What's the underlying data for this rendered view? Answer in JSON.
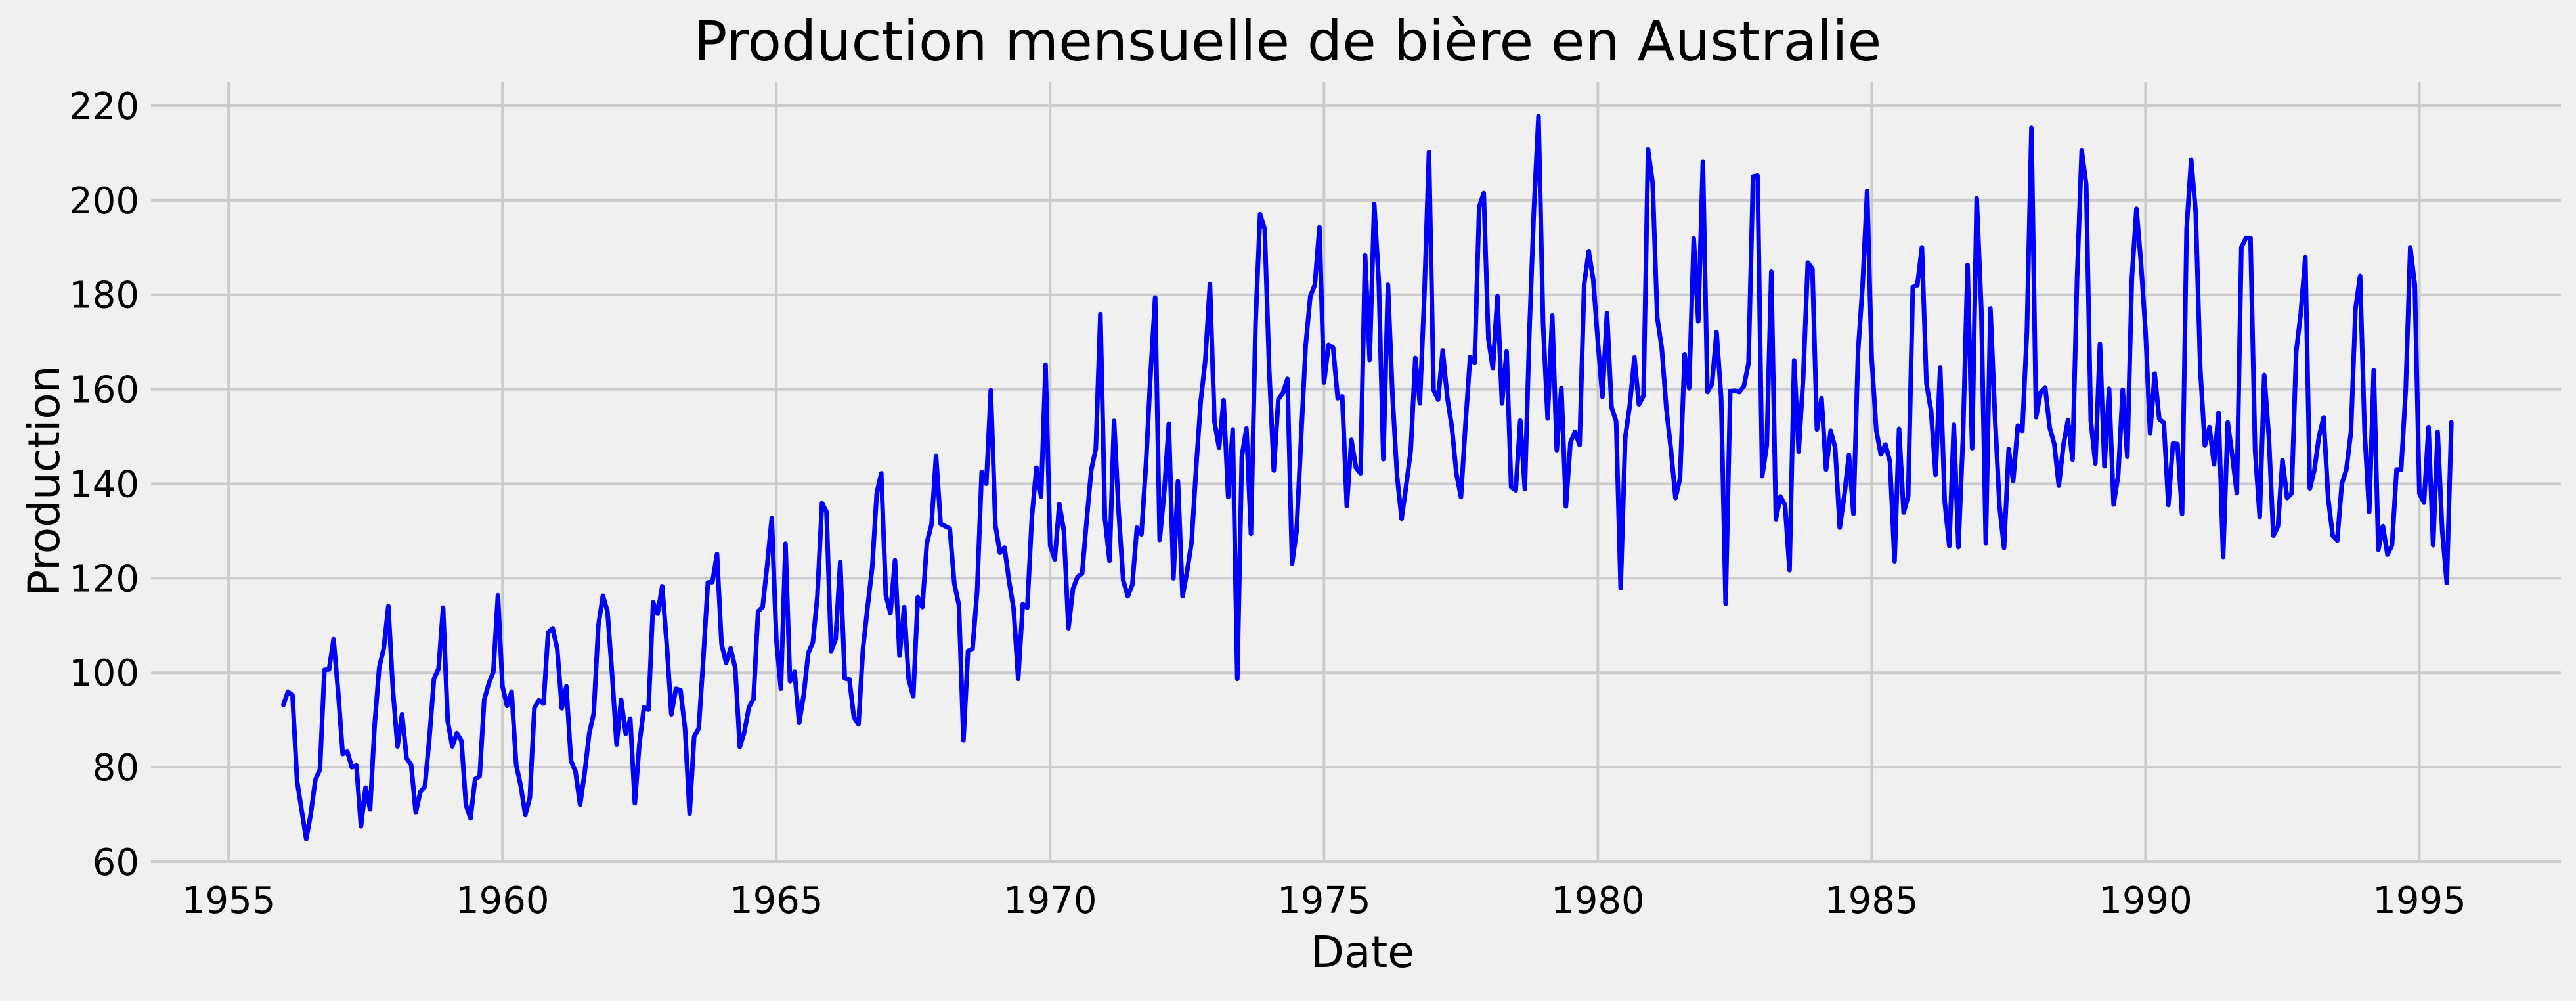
{
  "chart_data": {
    "type": "line",
    "title": "Production mensuelle de bière en Australie",
    "xlabel": "Date",
    "ylabel": "Production",
    "grid": true,
    "legend": "none",
    "xlim": [
      "1953-08",
      "1997-08"
    ],
    "ylim": [
      60,
      225
    ],
    "x_ticks": [
      {
        "value": "1955-01",
        "label": "1955"
      },
      {
        "value": "1960-01",
        "label": "1960"
      },
      {
        "value": "1965-01",
        "label": "1965"
      },
      {
        "value": "1970-01",
        "label": "1970"
      },
      {
        "value": "1975-01",
        "label": "1975"
      },
      {
        "value": "1980-01",
        "label": "1980"
      },
      {
        "value": "1985-01",
        "label": "1985"
      },
      {
        "value": "1990-01",
        "label": "1990"
      },
      {
        "value": "1995-01",
        "label": "1995"
      }
    ],
    "y_ticks": [
      {
        "value": 60,
        "label": "60"
      },
      {
        "value": 80,
        "label": "80"
      },
      {
        "value": 100,
        "label": "100"
      },
      {
        "value": 120,
        "label": "120"
      },
      {
        "value": 140,
        "label": "140"
      },
      {
        "value": 160,
        "label": "160"
      },
      {
        "value": 180,
        "label": "180"
      },
      {
        "value": 200,
        "label": "200"
      },
      {
        "value": 220,
        "label": "220"
      }
    ],
    "colors": {
      "line": "#0000ff",
      "grid": "#cbcbcb",
      "background": "#f0f0f0"
    },
    "series": [
      {
        "x": [
          "1956-01",
          "1956-02",
          "1956-03",
          "1956-04",
          "1956-05",
          "1956-06",
          "1956-07",
          "1956-08",
          "1956-09",
          "1956-10",
          "1956-11",
          "1956-12",
          "1957-01",
          "1957-02",
          "1957-03",
          "1957-04",
          "1957-05",
          "1957-06",
          "1957-07",
          "1957-08",
          "1957-09",
          "1957-10",
          "1957-11",
          "1957-12",
          "1958-01",
          "1958-02",
          "1958-03",
          "1958-04",
          "1958-05",
          "1958-06",
          "1958-07",
          "1958-08",
          "1958-09",
          "1958-10",
          "1958-11",
          "1958-12",
          "1959-01",
          "1959-02",
          "1959-03",
          "1959-04",
          "1959-05",
          "1959-06",
          "1959-07",
          "1959-08",
          "1959-09",
          "1959-10",
          "1959-11",
          "1959-12",
          "1960-01",
          "1960-02",
          "1960-03",
          "1960-04",
          "1960-05",
          "1960-06",
          "1960-07",
          "1960-08",
          "1960-09",
          "1960-10",
          "1960-11",
          "1960-12",
          "1961-01",
          "1961-02",
          "1961-03",
          "1961-04",
          "1961-05",
          "1961-06",
          "1961-07",
          "1961-08",
          "1961-09",
          "1961-10",
          "1961-11",
          "1961-12",
          "1962-01",
          "1962-02",
          "1962-03",
          "1962-04",
          "1962-05",
          "1962-06",
          "1962-07",
          "1962-08",
          "1962-09",
          "1962-10",
          "1962-11",
          "1962-12",
          "1963-01",
          "1963-02",
          "1963-03",
          "1963-04",
          "1963-05",
          "1963-06",
          "1963-07",
          "1963-08",
          "1963-09",
          "1963-10",
          "1963-11",
          "1963-12",
          "1964-01",
          "1964-02",
          "1964-03",
          "1964-04",
          "1964-05",
          "1964-06",
          "1964-07",
          "1964-08",
          "1964-09",
          "1964-10",
          "1964-11",
          "1964-12",
          "1965-01",
          "1965-02",
          "1965-03",
          "1965-04",
          "1965-05",
          "1965-06",
          "1965-07",
          "1965-08",
          "1965-09",
          "1965-10",
          "1965-11",
          "1965-12",
          "1966-01",
          "1966-02",
          "1966-03",
          "1966-04",
          "1966-05",
          "1966-06",
          "1966-07",
          "1966-08",
          "1966-09",
          "1966-10",
          "1966-11",
          "1966-12",
          "1967-01",
          "1967-02",
          "1967-03",
          "1967-04",
          "1967-05",
          "1967-06",
          "1967-07",
          "1967-08",
          "1967-09",
          "1967-10",
          "1967-11",
          "1967-12",
          "1968-01",
          "1968-02",
          "1968-03",
          "1968-04",
          "1968-05",
          "1968-06",
          "1968-07",
          "1968-08",
          "1968-09",
          "1968-10",
          "1968-11",
          "1968-12",
          "1969-01",
          "1969-02",
          "1969-03",
          "1969-04",
          "1969-05",
          "1969-06",
          "1969-07",
          "1969-08",
          "1969-09",
          "1969-10",
          "1969-11",
          "1969-12",
          "1970-01",
          "1970-02",
          "1970-03",
          "1970-04",
          "1970-05",
          "1970-06",
          "1970-07",
          "1970-08",
          "1970-09",
          "1970-10",
          "1970-11",
          "1970-12",
          "1971-01",
          "1971-02",
          "1971-03",
          "1971-04",
          "1971-05",
          "1971-06",
          "1971-07",
          "1971-08",
          "1971-09",
          "1971-10",
          "1971-11",
          "1971-12",
          "1972-01",
          "1972-02",
          "1972-03",
          "1972-04",
          "1972-05",
          "1972-06",
          "1972-07",
          "1972-08",
          "1972-09",
          "1972-10",
          "1972-11",
          "1972-12",
          "1973-01",
          "1973-02",
          "1973-03",
          "1973-04",
          "1973-05",
          "1973-06",
          "1973-07",
          "1973-08",
          "1973-09",
          "1973-10",
          "1973-11",
          "1973-12",
          "1974-01",
          "1974-02",
          "1974-03",
          "1974-04",
          "1974-05",
          "1974-06",
          "1974-07",
          "1974-08",
          "1974-09",
          "1974-10",
          "1974-11",
          "1974-12",
          "1975-01",
          "1975-02",
          "1975-03",
          "1975-04",
          "1975-05",
          "1975-06",
          "1975-07",
          "1975-08",
          "1975-09",
          "1975-10",
          "1975-11",
          "1975-12",
          "1976-01",
          "1976-02",
          "1976-03",
          "1976-04",
          "1976-05",
          "1976-06",
          "1976-07",
          "1976-08",
          "1976-09",
          "1976-10",
          "1976-11",
          "1976-12",
          "1977-01",
          "1977-02",
          "1977-03",
          "1977-04",
          "1977-05",
          "1977-06",
          "1977-07",
          "1977-08",
          "1977-09",
          "1977-10",
          "1977-11",
          "1977-12",
          "1978-01",
          "1978-02",
          "1978-03",
          "1978-04",
          "1978-05",
          "1978-06",
          "1978-07",
          "1978-08",
          "1978-09",
          "1978-10",
          "1978-11",
          "1978-12",
          "1979-01",
          "1979-02",
          "1979-03",
          "1979-04",
          "1979-05",
          "1979-06",
          "1979-07",
          "1979-08",
          "1979-09",
          "1979-10",
          "1979-11",
          "1979-12",
          "1980-01",
          "1980-02",
          "1980-03",
          "1980-04",
          "1980-05",
          "1980-06",
          "1980-07",
          "1980-08",
          "1980-09",
          "1980-10",
          "1980-11",
          "1980-12",
          "1981-01",
          "1981-02",
          "1981-03",
          "1981-04",
          "1981-05",
          "1981-06",
          "1981-07",
          "1981-08",
          "1981-09",
          "1981-10",
          "1981-11",
          "1981-12",
          "1982-01",
          "1982-02",
          "1982-03",
          "1982-04",
          "1982-05",
          "1982-06",
          "1982-07",
          "1982-08",
          "1982-09",
          "1982-10",
          "1982-11",
          "1982-12",
          "1983-01",
          "1983-02",
          "1983-03",
          "1983-04",
          "1983-05",
          "1983-06",
          "1983-07",
          "1983-08",
          "1983-09",
          "1983-10",
          "1983-11",
          "1983-12",
          "1984-01",
          "1984-02",
          "1984-03",
          "1984-04",
          "1984-05",
          "1984-06",
          "1984-07",
          "1984-08",
          "1984-09",
          "1984-10",
          "1984-11",
          "1984-12",
          "1985-01",
          "1985-02",
          "1985-03",
          "1985-04",
          "1985-05",
          "1985-06",
          "1985-07",
          "1985-08",
          "1985-09",
          "1985-10",
          "1985-11",
          "1985-12",
          "1986-01",
          "1986-02",
          "1986-03",
          "1986-04",
          "1986-05",
          "1986-06",
          "1986-07",
          "1986-08",
          "1986-09",
          "1986-10",
          "1986-11",
          "1986-12",
          "1987-01",
          "1987-02",
          "1987-03",
          "1987-04",
          "1987-05",
          "1987-06",
          "1987-07",
          "1987-08",
          "1987-09",
          "1987-10",
          "1987-11",
          "1987-12",
          "1988-01",
          "1988-02",
          "1988-03",
          "1988-04",
          "1988-05",
          "1988-06",
          "1988-07",
          "1988-08",
          "1988-09",
          "1988-10",
          "1988-11",
          "1988-12",
          "1989-01",
          "1989-02",
          "1989-03",
          "1989-04",
          "1989-05",
          "1989-06",
          "1989-07",
          "1989-08",
          "1989-09",
          "1989-10",
          "1989-11",
          "1989-12",
          "1990-01",
          "1990-02",
          "1990-03",
          "1990-04",
          "1990-05",
          "1990-06",
          "1990-07",
          "1990-08",
          "1990-09",
          "1990-10",
          "1990-11",
          "1990-12",
          "1991-01",
          "1991-02",
          "1991-03",
          "1991-04",
          "1991-05",
          "1991-06",
          "1991-07",
          "1991-08",
          "1991-09",
          "1991-10",
          "1991-11",
          "1991-12",
          "1992-01",
          "1992-02",
          "1992-03",
          "1992-04",
          "1992-05",
          "1992-06",
          "1992-07",
          "1992-08",
          "1992-09",
          "1992-10",
          "1992-11",
          "1992-12",
          "1993-01",
          "1993-02",
          "1993-03",
          "1993-04",
          "1993-05",
          "1993-06",
          "1993-07",
          "1993-08",
          "1993-09",
          "1993-10",
          "1993-11",
          "1993-12",
          "1994-01",
          "1994-02",
          "1994-03",
          "1994-04",
          "1994-05",
          "1994-06",
          "1994-07",
          "1994-08",
          "1994-09",
          "1994-10",
          "1994-11",
          "1994-12",
          "1995-01",
          "1995-02",
          "1995-03",
          "1995-04",
          "1995-05",
          "1995-06",
          "1995-07",
          "1995-08"
        ],
        "y": [
          93.2,
          96.0,
          95.2,
          77.1,
          70.9,
          64.8,
          70.1,
          77.3,
          79.5,
          100.6,
          100.7,
          107.1,
          95.9,
          82.8,
          83.3,
          80.0,
          80.4,
          67.5,
          75.7,
          71.1,
          89.1,
          101.1,
          105.2,
          114.1,
          96.3,
          84.4,
          91.2,
          81.9,
          80.5,
          70.4,
          74.8,
          75.9,
          86.3,
          98.7,
          100.9,
          113.8,
          89.8,
          84.4,
          87.2,
          85.6,
          72.0,
          69.2,
          77.5,
          78.1,
          94.3,
          97.7,
          100.2,
          116.4,
          97.1,
          93.0,
          96.0,
          80.5,
          76.1,
          69.9,
          73.6,
          92.6,
          94.2,
          93.5,
          108.5,
          109.4,
          105.1,
          92.5,
          97.1,
          81.4,
          79.1,
          72.1,
          78.7,
          87.1,
          91.4,
          109.9,
          116.3,
          113.0,
          100.0,
          84.8,
          94.3,
          87.1,
          90.3,
          72.4,
          84.9,
          92.7,
          92.2,
          114.9,
          112.5,
          118.3,
          106.0,
          91.2,
          96.6,
          96.3,
          88.2,
          70.2,
          86.5,
          88.2,
          102.8,
          119.1,
          119.2,
          125.1,
          106.1,
          102.1,
          105.2,
          101.0,
          84.3,
          87.5,
          92.7,
          94.4,
          113.0,
          113.9,
          122.9,
          132.7,
          106.9,
          96.6,
          127.3,
          98.2,
          100.2,
          89.4,
          95.3,
          104.2,
          106.4,
          116.2,
          135.9,
          134.0,
          104.6,
          107.1,
          123.5,
          98.8,
          98.6,
          90.6,
          89.1,
          105.2,
          114.0,
          122.1,
          138.0,
          142.2,
          116.4,
          112.6,
          123.8,
          103.6,
          113.9,
          98.6,
          95.0,
          116.0,
          113.9,
          127.5,
          131.4,
          145.9,
          131.5,
          131.0,
          130.5,
          118.9,
          114.3,
          85.7,
          104.6,
          105.1,
          117.3,
          142.5,
          140.0,
          159.8,
          131.2,
          125.4,
          126.5,
          119.4,
          113.5,
          98.7,
          114.5,
          113.8,
          133.1,
          143.4,
          137.3,
          165.2,
          126.9,
          124.0,
          135.7,
          130.0,
          109.4,
          117.8,
          120.3,
          121.0,
          132.3,
          142.9,
          147.4,
          175.9,
          132.6,
          123.7,
          153.3,
          134.0,
          119.6,
          116.2,
          118.6,
          130.7,
          129.3,
          144.4,
          163.2,
          179.4,
          128.1,
          138.4,
          152.7,
          120.0,
          140.5,
          116.2,
          121.4,
          127.8,
          143.6,
          157.6,
          166.2,
          182.3,
          153.1,
          147.6,
          157.7,
          137.2,
          151.5,
          98.7,
          145.8,
          151.7,
          129.4,
          174.1,
          197.0,
          193.9,
          164.1,
          142.8,
          157.9,
          159.2,
          162.2,
          123.1,
          130.0,
          150.1,
          169.4,
          179.7,
          182.1,
          194.3,
          161.4,
          169.4,
          168.8,
          158.1,
          158.5,
          135.3,
          149.3,
          143.4,
          142.2,
          188.4,
          166.2,
          199.2,
          182.7,
          145.2,
          182.1,
          158.7,
          141.6,
          132.6,
          139.6,
          147.0,
          166.6,
          157.0,
          180.4,
          210.2,
          159.8,
          157.8,
          168.2,
          158.4,
          152.0,
          142.2,
          137.2,
          152.6,
          166.8,
          165.6,
          198.6,
          201.5,
          170.7,
          164.4,
          179.7,
          157.0,
          168.0,
          139.3,
          138.6,
          153.4,
          138.9,
          172.1,
          198.4,
          217.8,
          173.7,
          153.8,
          175.6,
          147.1,
          160.3,
          135.2,
          148.8,
          151.0,
          148.2,
          182.2,
          189.2,
          183.1,
          170.0,
          158.4,
          176.1,
          156.2,
          153.2,
          117.9,
          149.8,
          156.6,
          166.7,
          156.8,
          158.6,
          210.8,
          203.6,
          175.2,
          168.7,
          155.9,
          147.3,
          137.0,
          141.1,
          167.4,
          160.2,
          191.9,
          174.4,
          208.2,
          159.4,
          161.1,
          172.1,
          158.4,
          114.6,
          159.6,
          159.7,
          159.4,
          160.7,
          165.5,
          205.0,
          205.2,
          141.6,
          148.1,
          184.9,
          132.5,
          137.3,
          135.5,
          121.7,
          166.1,
          146.8,
          162.8,
          186.8,
          185.5,
          151.5,
          158.1,
          143.0,
          151.2,
          147.6,
          130.7,
          137.5,
          146.1,
          133.6,
          167.9,
          181.9,
          202.0,
          166.5,
          151.3,
          146.2,
          148.3,
          144.7,
          123.6,
          151.6,
          133.9,
          137.4,
          181.6,
          182.0,
          190.0,
          161.2,
          155.5,
          141.9,
          164.6,
          136.2,
          126.8,
          152.5,
          126.6,
          150.1,
          186.3,
          147.5,
          200.4,
          177.2,
          127.4,
          177.1,
          154.4,
          135.2,
          126.4,
          147.3,
          140.6,
          152.3,
          151.2,
          172.2,
          215.3,
          154.1,
          159.3,
          160.4,
          151.9,
          148.4,
          139.6,
          148.2,
          153.5,
          145.1,
          183.7,
          210.5,
          203.3,
          153.3,
          144.3,
          169.6,
          143.7,
          160.1,
          135.6,
          141.8,
          159.9,
          145.7,
          183.5,
          198.2,
          186.8,
          172.0,
          150.6,
          163.3,
          153.7,
          152.9,
          135.5,
          148.5,
          148.4,
          133.6,
          194.1,
          208.6,
          197.3,
          164.0,
          148.1,
          152.0,
          144.1,
          155.0,
          124.5,
          153.0,
          146.0,
          138.0,
          190.0,
          192.0,
          192.0,
          147.0,
          133.0,
          163.0,
          150.0,
          129.0,
          131.0,
          145.0,
          137.0,
          138.0,
          168.0,
          176.0,
          188.0,
          139.0,
          143.0,
          150.0,
          154.0,
          137.0,
          129.0,
          128.0,
          140.0,
          143.0,
          151.0,
          177.0,
          184.0,
          151.0,
          134.0,
          164.0,
          126.0,
          131.0,
          125.0,
          127.0,
          143.0,
          143.0,
          160.0,
          190.0,
          182.0,
          138.0,
          136.0,
          152.0,
          127.0,
          151.0,
          130.0,
          119.0,
          153.0
        ]
      }
    ]
  }
}
